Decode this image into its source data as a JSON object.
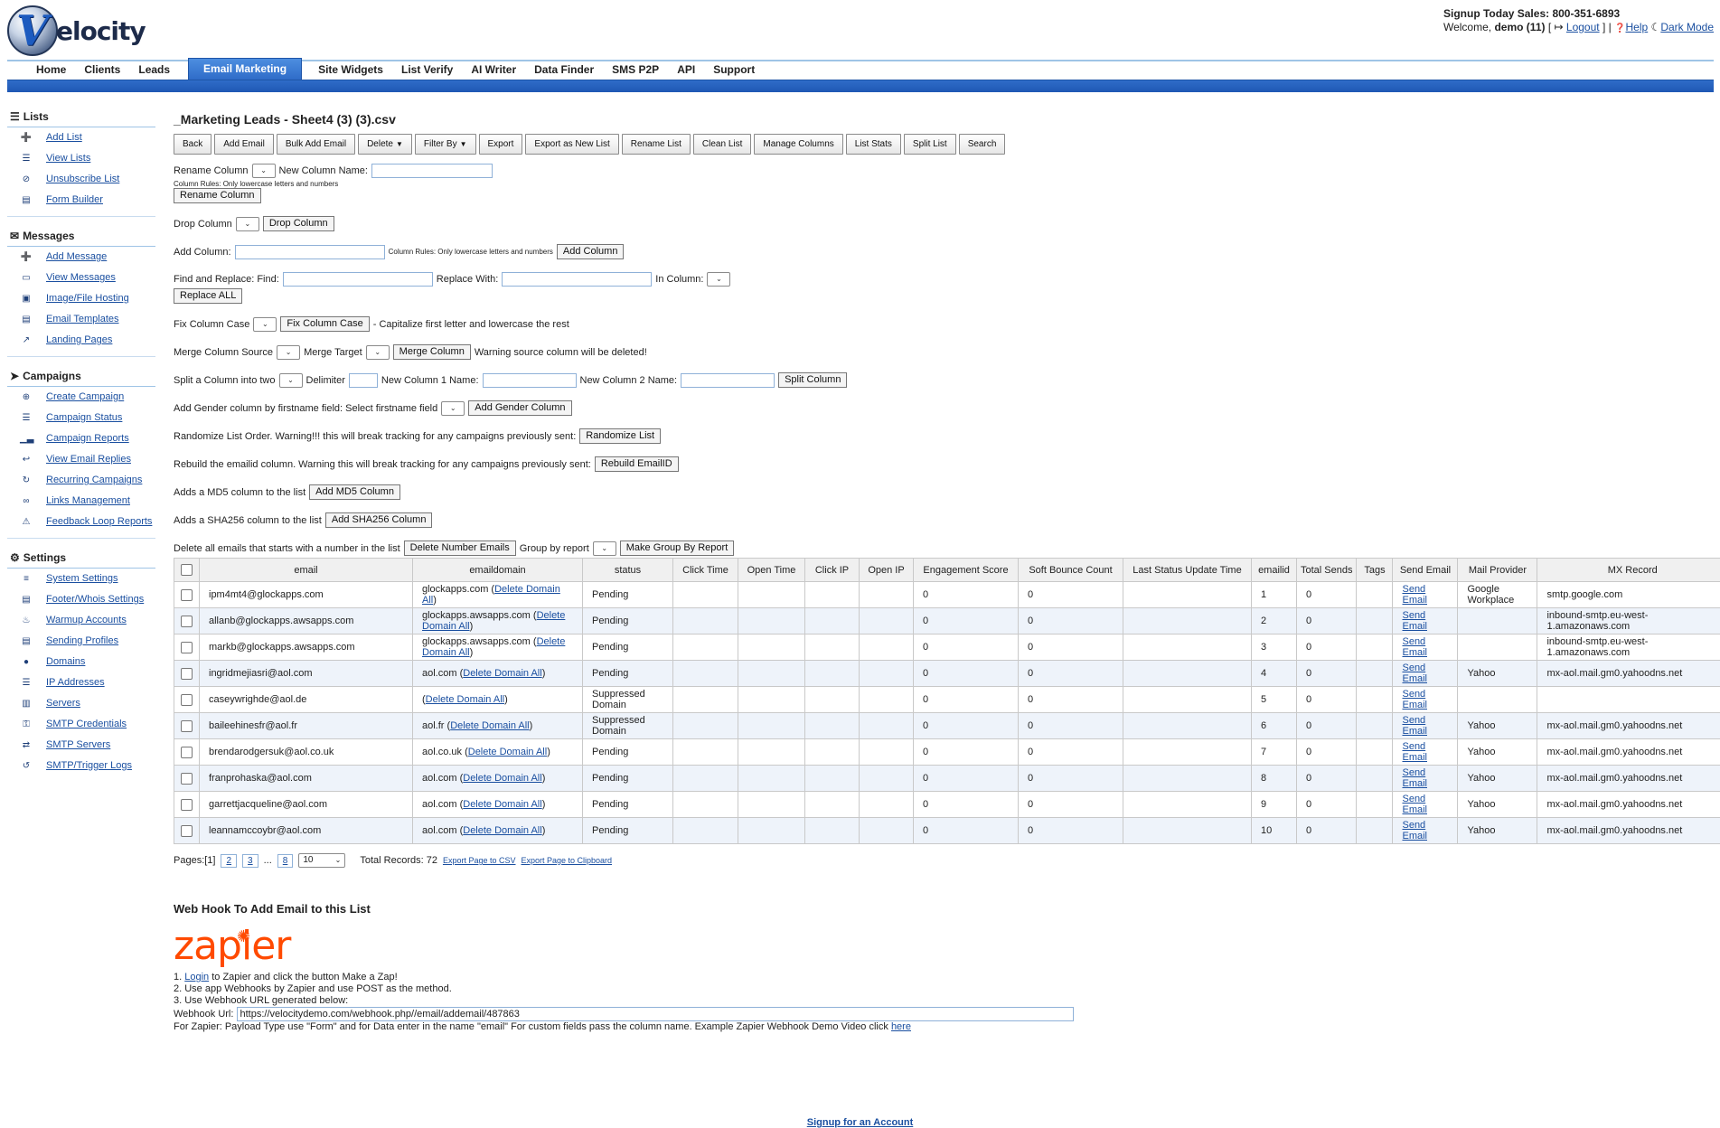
{
  "header": {
    "logo_mark": "V",
    "logo_text": "elocity",
    "signup_text": "Signup Today Sales: 800-351-6893",
    "welcome_prefix": "Welcome,",
    "username": "demo (11)",
    "logout": "Logout",
    "help": "Help",
    "dark_mode": "Dark Mode"
  },
  "nav": {
    "tabs": [
      "Home",
      "Clients",
      "Leads",
      "Email Marketing",
      "Site Widgets",
      "List Verify",
      "AI Writer",
      "Data Finder",
      "SMS P2P",
      "API",
      "Support"
    ],
    "active": "Email Marketing"
  },
  "sidebar": {
    "lists": {
      "title": "Lists",
      "items": [
        {
          "label": "Add List",
          "icon": "plus-icon"
        },
        {
          "label": "View Lists",
          "icon": "list-icon"
        },
        {
          "label": "Unsubscribe List",
          "icon": "ban-icon"
        },
        {
          "label": "Form Builder",
          "icon": "form-icon"
        }
      ]
    },
    "messages": {
      "title": "Messages",
      "items": [
        {
          "label": "Add Message",
          "icon": "plus-icon"
        },
        {
          "label": "View Messages",
          "icon": "inbox-icon"
        },
        {
          "label": "Image/File Hosting",
          "icon": "image-icon"
        },
        {
          "label": "Email Templates",
          "icon": "file-icon"
        },
        {
          "label": "Landing Pages",
          "icon": "external-link-icon"
        }
      ]
    },
    "campaigns": {
      "title": "Campaigns",
      "items": [
        {
          "label": "Create Campaign",
          "icon": "plus-circle-icon"
        },
        {
          "label": "Campaign Status",
          "icon": "list-icon"
        },
        {
          "label": "Campaign Reports",
          "icon": "bar-chart-icon"
        },
        {
          "label": "View Email Replies",
          "icon": "reply-icon"
        },
        {
          "label": "Recurring Campaigns",
          "icon": "refresh-icon"
        },
        {
          "label": "Links Management",
          "icon": "link-icon"
        },
        {
          "label": "Feedback Loop Reports",
          "icon": "warning-icon"
        }
      ]
    },
    "settings": {
      "title": "Settings",
      "items": [
        {
          "label": "System Settings",
          "icon": "sliders-icon"
        },
        {
          "label": "Footer/Whois Settings",
          "icon": "file-icon"
        },
        {
          "label": "Warmup Accounts",
          "icon": "fire-icon"
        },
        {
          "label": "Sending Profiles",
          "icon": "file-icon"
        },
        {
          "label": "Domains",
          "icon": "globe-icon"
        },
        {
          "label": "IP Addresses",
          "icon": "list-icon"
        },
        {
          "label": "Servers",
          "icon": "server-icon"
        },
        {
          "label": "SMTP Credentials",
          "icon": "key-icon"
        },
        {
          "label": "SMTP Servers",
          "icon": "exchange-icon"
        },
        {
          "label": "SMTP/Trigger Logs",
          "icon": "history-icon"
        }
      ]
    }
  },
  "main": {
    "title": "_Marketing Leads - Sheet4 (3) (3).csv",
    "toolbar": [
      "Back",
      "Add Email",
      "Bulk Add Email",
      "Delete",
      "Filter By",
      "Export",
      "Export as New List",
      "Rename List",
      "Clean List",
      "Manage Columns",
      "List Stats",
      "Split List",
      "Search"
    ],
    "rename": {
      "label": "Rename Column",
      "new_name_label": "New Column Name:",
      "rules": "Column Rules: Only lowercase letters and numbers",
      "button": "Rename Column"
    },
    "drop": {
      "label": "Drop Column",
      "button": "Drop Column"
    },
    "add": {
      "label": "Add Column:",
      "rules": "Column Rules: Only lowercase letters and numbers",
      "button": "Add Column"
    },
    "replace": {
      "label": "Find and Replace: Find:",
      "with_label": "Replace With:",
      "in_label": "In Column:",
      "button": "Replace ALL"
    },
    "fixcase": {
      "label": "Fix Column Case",
      "button": "Fix Column Case",
      "note": "- Capitalize first letter and lowercase the rest"
    },
    "merge": {
      "label": "Merge Column Source",
      "target_label": "Merge Target",
      "button": "Merge Column",
      "note": "Warning source column will be deleted!"
    },
    "split": {
      "label": "Split a Column into two",
      "delim_label": "Delimiter",
      "c1_label": "New Column 1 Name:",
      "c2_label": "New Column 2 Name:",
      "button": "Split Column"
    },
    "gender": {
      "label": "Add Gender column by firstname field: Select firstname field",
      "button": "Add Gender Column"
    },
    "randomize": {
      "label": "Randomize List Order. Warning!!! this will break tracking for any campaigns previously sent:",
      "button": "Randomize List"
    },
    "rebuild": {
      "label": "Rebuild the emailid column. Warning this will break tracking for any campaigns previously sent:",
      "button": "Rebuild EmailID"
    },
    "md5": {
      "label": "Adds a MD5 column to the list",
      "button": "Add MD5 Column"
    },
    "sha": {
      "label": "Adds a SHA256 column to the list",
      "button": "Add SHA256 Column"
    },
    "delnum": {
      "label": "Delete all emails that starts with a number in the list",
      "button": "Delete Number Emails",
      "group_label": "Group by report",
      "group_button": "Make Group By Report"
    }
  },
  "table": {
    "headers": [
      "email",
      "emaildomain",
      "status",
      "Click Time",
      "Open Time",
      "Click IP",
      "Open IP",
      "Engagement Score",
      "Soft Bounce Count",
      "Last Status Update Time",
      "emailid",
      "Total Sends",
      "Tags",
      "Send Email",
      "Mail Provider",
      "MX Record"
    ],
    "rows": [
      {
        "email": "ipm4mt4@glockapps.com",
        "domain": "glockapps.com (",
        "del": "Delete Domain All",
        "status": "Pending",
        "click_time": "",
        "open_time": "",
        "click_ip": "",
        "open_ip": "",
        "engagement": "0",
        "soft_bounce": "0",
        "last_update": "",
        "emailid": "1",
        "total_sends": "0",
        "tags": "",
        "send": "Send Email",
        "provider": "Google Workplace",
        "mx": "smtp.google.com"
      },
      {
        "email": "allanb@glockapps.awsapps.com",
        "domain": "glockapps.awsapps.com (",
        "del": "Delete Domain All",
        "status": "Pending",
        "click_time": "",
        "open_time": "",
        "click_ip": "",
        "open_ip": "",
        "engagement": "0",
        "soft_bounce": "0",
        "last_update": "",
        "emailid": "2",
        "total_sends": "0",
        "tags": "",
        "send": "Send Email",
        "provider": "",
        "mx": "inbound-smtp.eu-west-1.amazonaws.com"
      },
      {
        "email": "markb@glockapps.awsapps.com",
        "domain": "glockapps.awsapps.com (",
        "del": "Delete Domain All",
        "status": "Pending",
        "click_time": "",
        "open_time": "",
        "click_ip": "",
        "open_ip": "",
        "engagement": "0",
        "soft_bounce": "0",
        "last_update": "",
        "emailid": "3",
        "total_sends": "0",
        "tags": "",
        "send": "Send Email",
        "provider": "",
        "mx": "inbound-smtp.eu-west-1.amazonaws.com"
      },
      {
        "email": "ingridmejiasri@aol.com",
        "domain": "aol.com (",
        "del": "Delete Domain All",
        "status": "Pending",
        "click_time": "",
        "open_time": "",
        "click_ip": "",
        "open_ip": "",
        "engagement": "0",
        "soft_bounce": "0",
        "last_update": "",
        "emailid": "4",
        "total_sends": "0",
        "tags": "",
        "send": "Send Email",
        "provider": "Yahoo",
        "mx": "mx-aol.mail.gm0.yahoodns.net"
      },
      {
        "email": "caseywrighde@aol.de",
        "domain": "(",
        "del": "Delete Domain All",
        "status": "Suppressed Domain",
        "click_time": "",
        "open_time": "",
        "click_ip": "",
        "open_ip": "",
        "engagement": "0",
        "soft_bounce": "0",
        "last_update": "",
        "emailid": "5",
        "total_sends": "0",
        "tags": "",
        "send": "Send Email",
        "provider": "",
        "mx": ""
      },
      {
        "email": "baileehinesfr@aol.fr",
        "domain": "aol.fr (",
        "del": "Delete Domain All",
        "status": "Suppressed Domain",
        "click_time": "",
        "open_time": "",
        "click_ip": "",
        "open_ip": "",
        "engagement": "0",
        "soft_bounce": "0",
        "last_update": "",
        "emailid": "6",
        "total_sends": "0",
        "tags": "",
        "send": "Send Email",
        "provider": "Yahoo",
        "mx": "mx-aol.mail.gm0.yahoodns.net"
      },
      {
        "email": "brendarodgersuk@aol.co.uk",
        "domain": "aol.co.uk (",
        "del": "Delete Domain All",
        "status": "Pending",
        "click_time": "",
        "open_time": "",
        "click_ip": "",
        "open_ip": "",
        "engagement": "0",
        "soft_bounce": "0",
        "last_update": "",
        "emailid": "7",
        "total_sends": "0",
        "tags": "",
        "send": "Send Email",
        "provider": "Yahoo",
        "mx": "mx-aol.mail.gm0.yahoodns.net"
      },
      {
        "email": "franprohaska@aol.com",
        "domain": "aol.com (",
        "del": "Delete Domain All",
        "status": "Pending",
        "click_time": "",
        "open_time": "",
        "click_ip": "",
        "open_ip": "",
        "engagement": "0",
        "soft_bounce": "0",
        "last_update": "",
        "emailid": "8",
        "total_sends": "0",
        "tags": "",
        "send": "Send Email",
        "provider": "Yahoo",
        "mx": "mx-aol.mail.gm0.yahoodns.net"
      },
      {
        "email": "garrettjacqueline@aol.com",
        "domain": "aol.com (",
        "del": "Delete Domain All",
        "status": "Pending",
        "click_time": "",
        "open_time": "",
        "click_ip": "",
        "open_ip": "",
        "engagement": "0",
        "soft_bounce": "0",
        "last_update": "",
        "emailid": "9",
        "total_sends": "0",
        "tags": "",
        "send": "Send Email",
        "provider": "Yahoo",
        "mx": "mx-aol.mail.gm0.yahoodns.net"
      },
      {
        "email": "leannamccoybr@aol.com",
        "domain": "aol.com (",
        "del": "Delete Domain All",
        "status": "Pending",
        "click_time": "",
        "open_time": "",
        "click_ip": "",
        "open_ip": "",
        "engagement": "0",
        "soft_bounce": "0",
        "last_update": "",
        "emailid": "10",
        "total_sends": "0",
        "tags": "",
        "send": "Send Email",
        "provider": "Yahoo",
        "mx": "mx-aol.mail.gm0.yahoodns.net"
      }
    ]
  },
  "pager": {
    "label": "Pages:[1]",
    "pages": [
      "2",
      "3",
      "...",
      "8"
    ],
    "per_page": "10",
    "total": "Total Records: 72",
    "export_csv": "Export Page to CSV",
    "export_clip": "Export Page to Clipboard"
  },
  "webhook": {
    "title": "Web Hook To Add Email to this List",
    "logo_text": "zapier",
    "step1_prefix": "1.",
    "step1_link": "Login",
    "step1_suffix": "to Zapier and click the button Make a Zap!",
    "step2": "2. Use app Webhooks by Zapier and use POST as the method.",
    "step3": "3. Use Webhook URL generated below:",
    "url_label": "Webhook Url:",
    "url": "https://velocitydemo.com/webhook.php//email/addemail/487863",
    "note": "For Zapier: Payload Type use \"Form\" and for Data enter in the name \"email\" For custom fields pass the column name. Example Zapier Webhook Demo Video click",
    "note_link": "here"
  },
  "footer": {
    "signup": "Signup for an Account"
  },
  "colors": {
    "accent": "#2f6cc8",
    "link": "#1a4fa0",
    "alt_row": "#eef3fa",
    "zapier": "#ff4a00"
  }
}
